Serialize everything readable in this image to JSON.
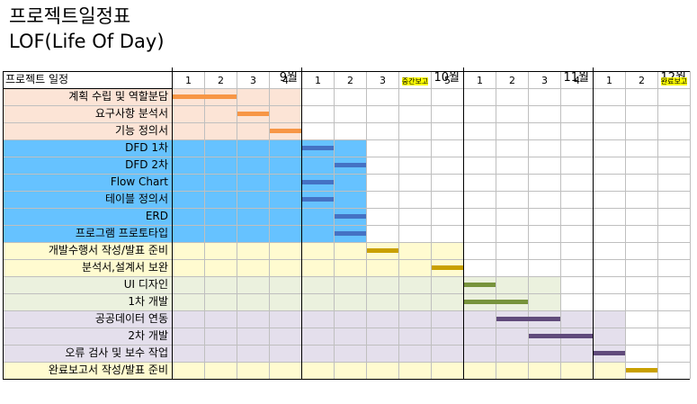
{
  "title": "프로젝트일정표",
  "subtitle": "LOF(Life Of Day)",
  "header_label": "프로젝트 일정",
  "months": [
    "9월",
    "10월",
    "11월",
    "12월"
  ],
  "weeks": [
    "1",
    "2",
    "3",
    "4",
    "1",
    "2",
    "3",
    "중간보고",
    "5",
    "1",
    "2",
    "3",
    "4",
    "1",
    "2",
    "완료보고"
  ],
  "milestone_weeks": [
    "중간보고",
    "완료보고"
  ],
  "tasks": [
    {
      "name": "계획 수립 및 역할분담",
      "group": "plan",
      "bar": [
        0,
        2
      ],
      "bar_color": "#f79646"
    },
    {
      "name": "요구사항 분석서",
      "group": "plan",
      "bar": [
        2,
        3
      ],
      "bar_color": "#f79646"
    },
    {
      "name": "기능 정의서",
      "group": "plan",
      "bar": [
        3,
        4
      ],
      "bar_color": "#f79646"
    },
    {
      "name": "DFD 1차",
      "group": "design",
      "bar": [
        4,
        5
      ],
      "bar_color": "#4472c4"
    },
    {
      "name": "DFD 2차",
      "group": "design",
      "bar": [
        5,
        6
      ],
      "bar_color": "#4472c4"
    },
    {
      "name": "Flow Chart",
      "group": "design",
      "bar": [
        4,
        5
      ],
      "bar_color": "#4472c4"
    },
    {
      "name": "테이블 정의서",
      "group": "design",
      "bar": [
        4,
        5
      ],
      "bar_color": "#4472c4"
    },
    {
      "name": "ERD",
      "group": "design",
      "bar": [
        5,
        6
      ],
      "bar_color": "#4472c4"
    },
    {
      "name": "프로그램 프로토타입",
      "group": "design",
      "bar": [
        5,
        6
      ],
      "bar_color": "#4472c4"
    },
    {
      "name": "개발수행서 작성/발표 준비",
      "group": "doc",
      "bar": [
        6,
        7
      ],
      "bar_color": "#c9a000"
    },
    {
      "name": "분석서,설계서 보완",
      "group": "doc",
      "bar": [
        8,
        9
      ],
      "bar_color": "#c9a000"
    },
    {
      "name": "UI 디자인",
      "group": "ui",
      "bar": [
        9,
        10
      ],
      "bar_color": "#77933c"
    },
    {
      "name": "1차 개발",
      "group": "ui",
      "bar": [
        9,
        11
      ],
      "bar_color": "#77933c"
    },
    {
      "name": "공공데이터 연동",
      "group": "dev2",
      "bar": [
        10,
        12
      ],
      "bar_color": "#604a7b"
    },
    {
      "name": "2차 개발",
      "group": "dev2",
      "bar": [
        11,
        13
      ],
      "bar_color": "#604a7b"
    },
    {
      "name": "오류 검사 및 보수 작업",
      "group": "dev2",
      "bar": [
        13,
        14
      ],
      "bar_color": "#604a7b"
    },
    {
      "name": "완료보고서 작성/발표 준비",
      "group": "final",
      "bar": [
        14,
        15
      ],
      "bar_color": "#c9a000"
    }
  ],
  "groups": {
    "plan": {
      "fill": "#fce4d6",
      "fill_to": 4
    },
    "design": {
      "fill": "#66c2ff",
      "fill_to": 6
    },
    "doc": {
      "fill": "#fffbd0",
      "fill_to": 9
    },
    "ui": {
      "fill": "#ebf1de",
      "fill_to": 12
    },
    "dev2": {
      "fill": "#e4dfec",
      "fill_to": 14
    },
    "final": {
      "fill": "#fffbd0",
      "fill_to": 14
    }
  }
}
